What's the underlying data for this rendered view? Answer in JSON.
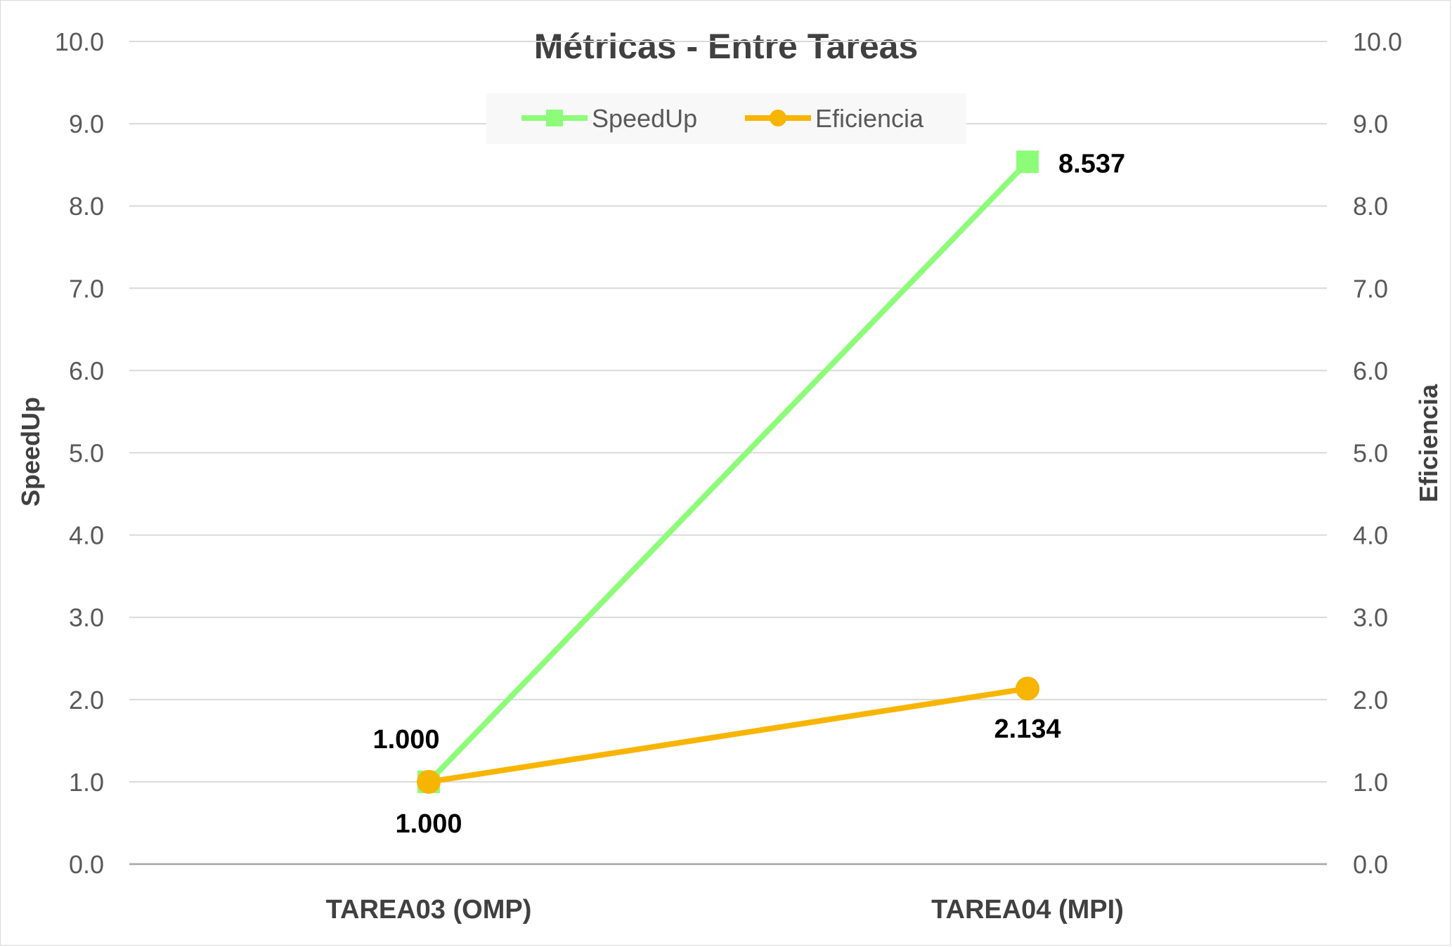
{
  "chart_data": {
    "type": "line",
    "title": "Métricas - Entre Tareas",
    "categories": [
      "TAREA03 (OMP)",
      "TAREA04 (MPI)"
    ],
    "ylabel": "SpeedUp",
    "y2label": "Eficiencia",
    "ylim": [
      0,
      10
    ],
    "y2lim": [
      0,
      10
    ],
    "yticks": [
      "0.0",
      "1.0",
      "2.0",
      "3.0",
      "4.0",
      "5.0",
      "6.0",
      "7.0",
      "8.0",
      "9.0",
      "10.0"
    ],
    "grid": true,
    "legend_position": "top",
    "series": [
      {
        "name": "SpeedUp",
        "values": [
          1.0,
          8.537
        ],
        "labels": [
          "1.000",
          "8.537"
        ],
        "marker": "square",
        "color": "#8dfc79",
        "axis": "left"
      },
      {
        "name": "Eficiencia",
        "values": [
          1.0,
          2.134
        ],
        "labels": [
          "1.000",
          "2.134"
        ],
        "marker": "circle",
        "color": "#f7b502",
        "axis": "right"
      }
    ]
  }
}
